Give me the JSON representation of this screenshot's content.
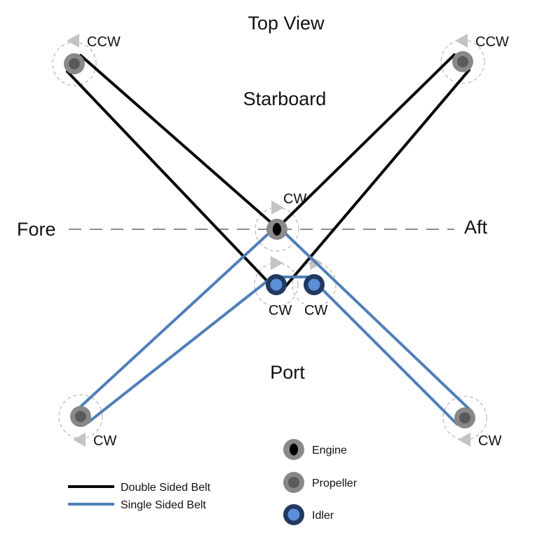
{
  "title": "Top View",
  "labels": {
    "starboard": "Starboard",
    "port": "Port",
    "fore": "Fore",
    "aft": "Aft"
  },
  "rotation": {
    "prop_top_left": "CCW",
    "prop_top_right": "CCW",
    "prop_bottom_left": "CW",
    "prop_bottom_right": "CW",
    "engine": "CW",
    "idler_left": "CW",
    "idler_right": "CW"
  },
  "legend": {
    "double_belt": "Double Sided Belt",
    "single_belt": "Single Sided Belt",
    "engine": "Engine",
    "propeller": "Propeller",
    "idler": "Idler"
  },
  "colors": {
    "double_belt": "#000000",
    "single_belt": "#4f7fb8",
    "propeller_outer": "#888888",
    "propeller_inner": "#5a5a5a",
    "engine_outer": "#8a8a8a",
    "engine_inner": "#000000",
    "idler_outer": "#22395f",
    "idler_inner": "#5b8fd6",
    "arrow": "#c4c4c4",
    "dashed_circle": "#b5b5b5",
    "axis_line": "#8c8c8c"
  }
}
